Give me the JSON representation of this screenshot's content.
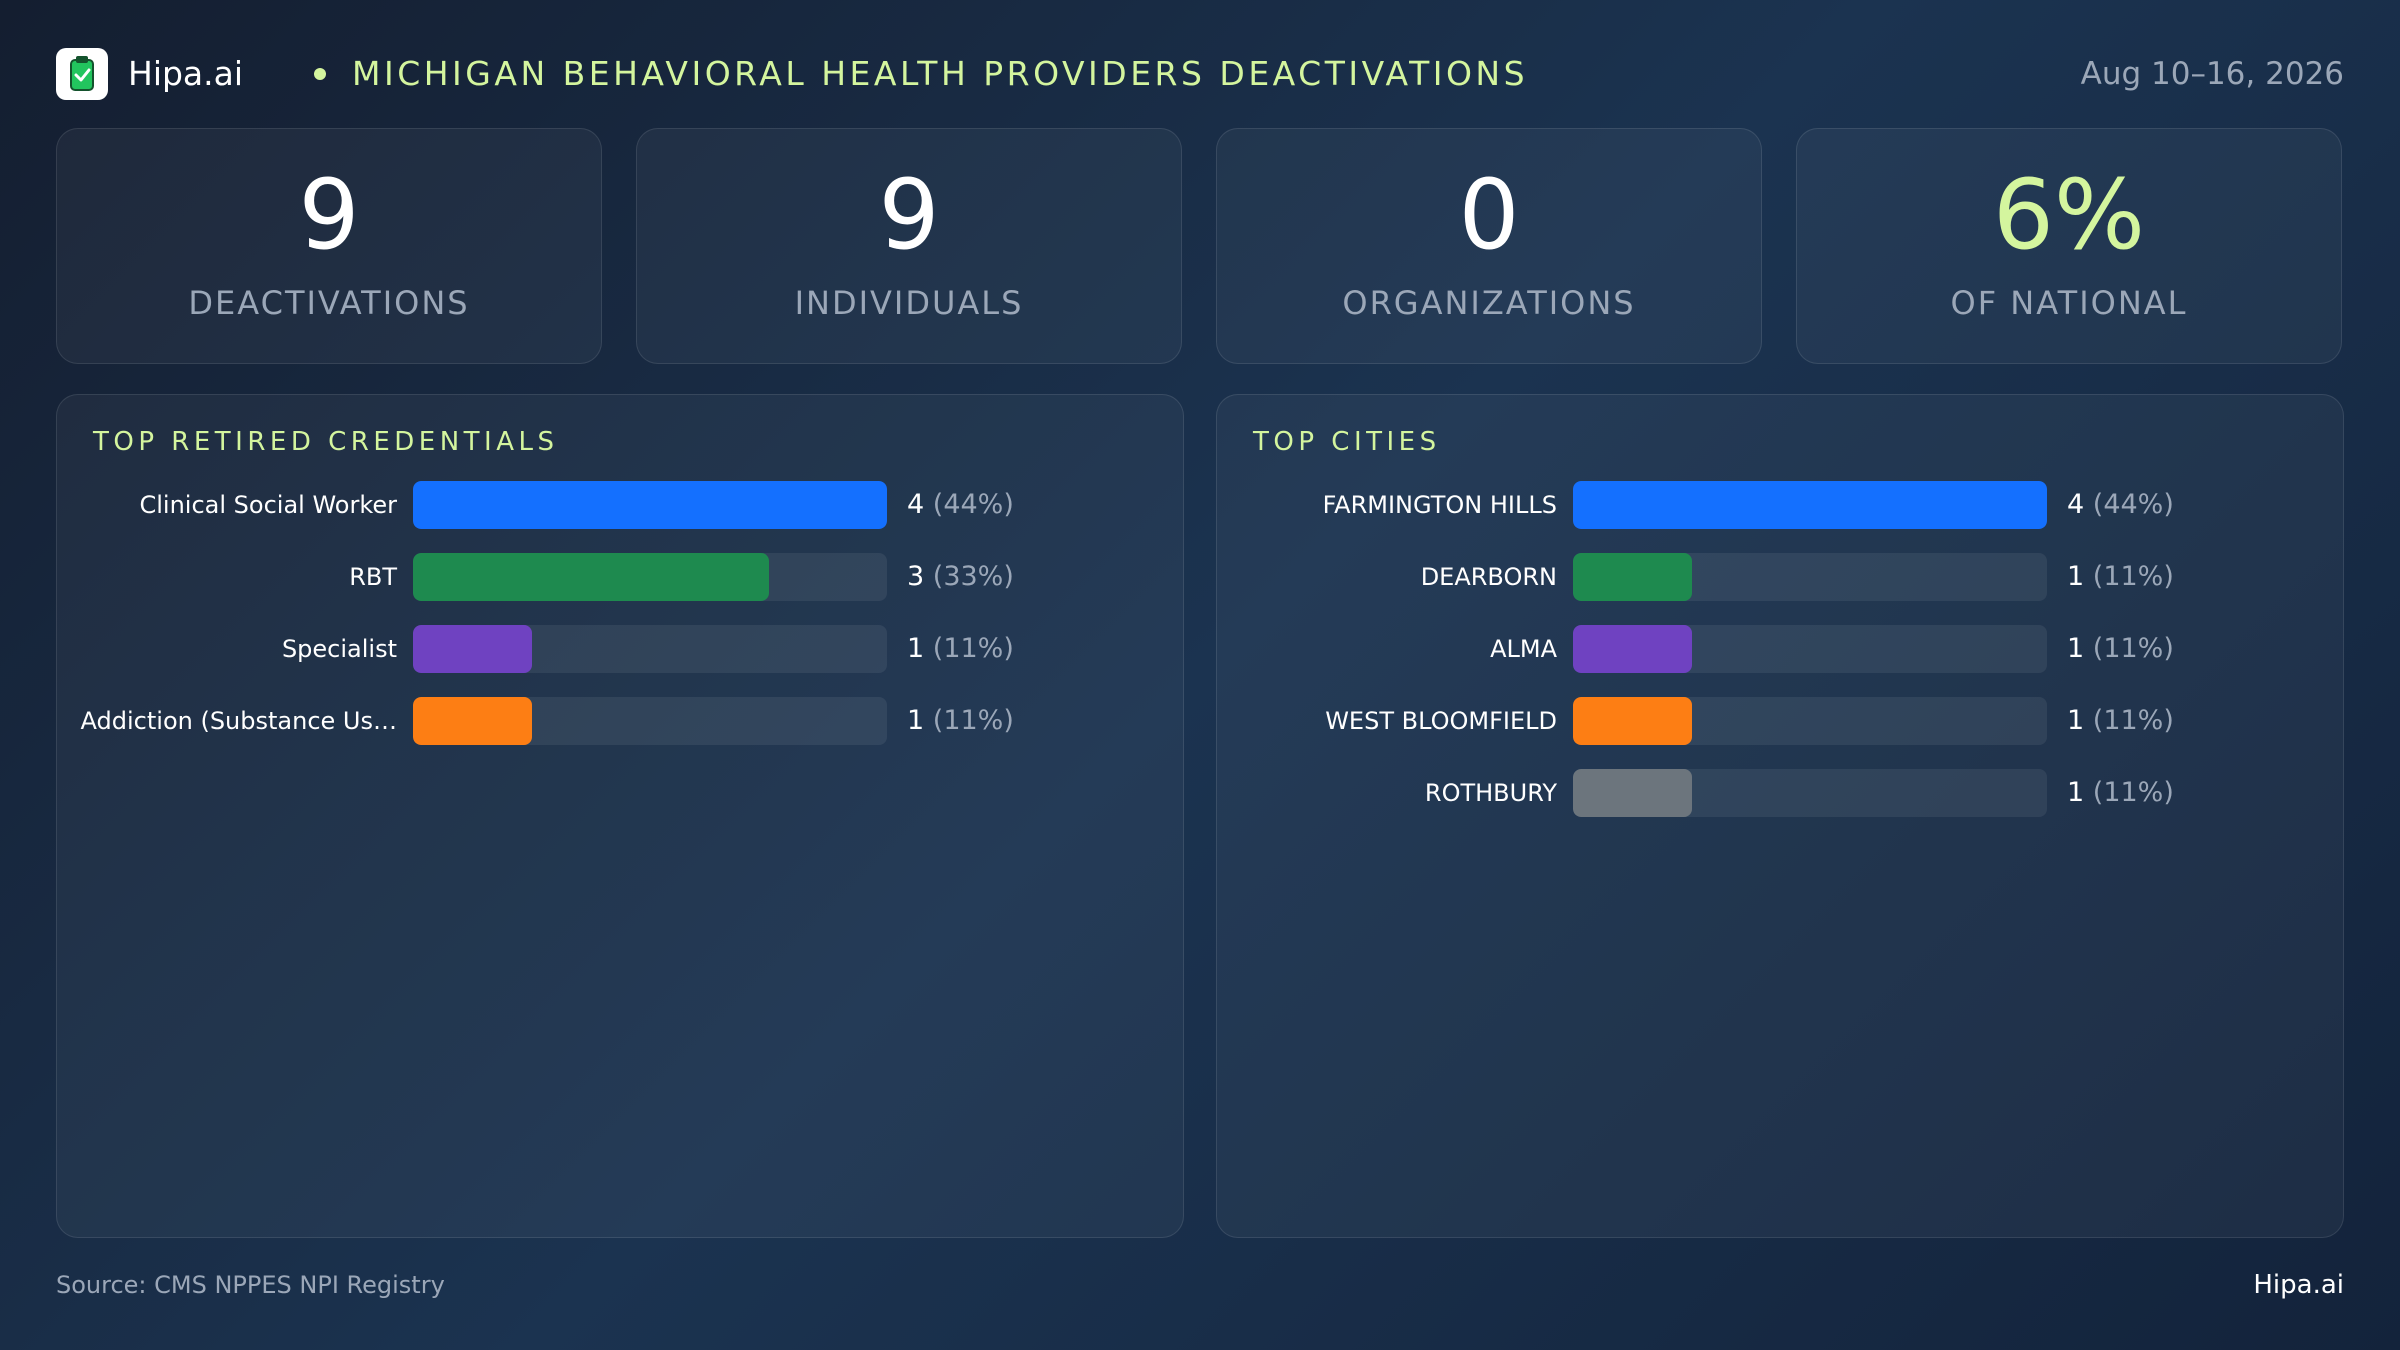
{
  "header": {
    "brand": "Hipa.ai",
    "title": "MICHIGAN BEHAVIORAL HEALTH PROVIDERS DEACTIVATIONS",
    "date": "Aug 10–16, 2026",
    "logo_icon": "clipboard-icon"
  },
  "kpis": [
    {
      "value": "9",
      "label": "DEACTIVATIONS",
      "color": "#ffffff"
    },
    {
      "value": "9",
      "label": "INDIVIDUALS",
      "color": "#ffffff"
    },
    {
      "value": "0",
      "label": "ORGANIZATIONS",
      "color": "#ffffff"
    },
    {
      "value": "6%",
      "label": "OF NATIONAL",
      "color": "#d4f59e"
    }
  ],
  "chart_data": [
    {
      "type": "bar",
      "title": "TOP RETIRED CREDENTIALS",
      "orientation": "horizontal",
      "categories": [
        "Clinical Social Worker",
        "RBT",
        "Specialist",
        "Addiction (Substance Us…"
      ],
      "values": [
        4,
        3,
        1,
        1
      ],
      "value_labels": [
        "4",
        "3",
        "1",
        "1"
      ],
      "percent_labels": [
        "(44%)",
        "(33%)",
        "(11%)",
        "(11%)"
      ],
      "colors": [
        "#1470ff",
        "#1e8a4f",
        "#6f42c1",
        "#fd7e14"
      ],
      "xlim": [
        0,
        4
      ]
    },
    {
      "type": "bar",
      "title": "TOP CITIES",
      "orientation": "horizontal",
      "categories": [
        "FARMINGTON HILLS",
        "DEARBORN",
        "ALMA",
        "WEST BLOOMFIELD",
        "ROTHBURY"
      ],
      "values": [
        4,
        1,
        1,
        1,
        1
      ],
      "value_labels": [
        "4",
        "1",
        "1",
        "1",
        "1"
      ],
      "percent_labels": [
        "(44%)",
        "(11%)",
        "(11%)",
        "(11%)",
        "(11%)"
      ],
      "colors": [
        "#1470ff",
        "#1e8a4f",
        "#6f42c1",
        "#fd7e14",
        "#6c757d"
      ],
      "xlim": [
        0,
        4
      ]
    }
  ],
  "footer": {
    "source": "Source: CMS NPPES NPI Registry",
    "brand": "Hipa.ai"
  }
}
